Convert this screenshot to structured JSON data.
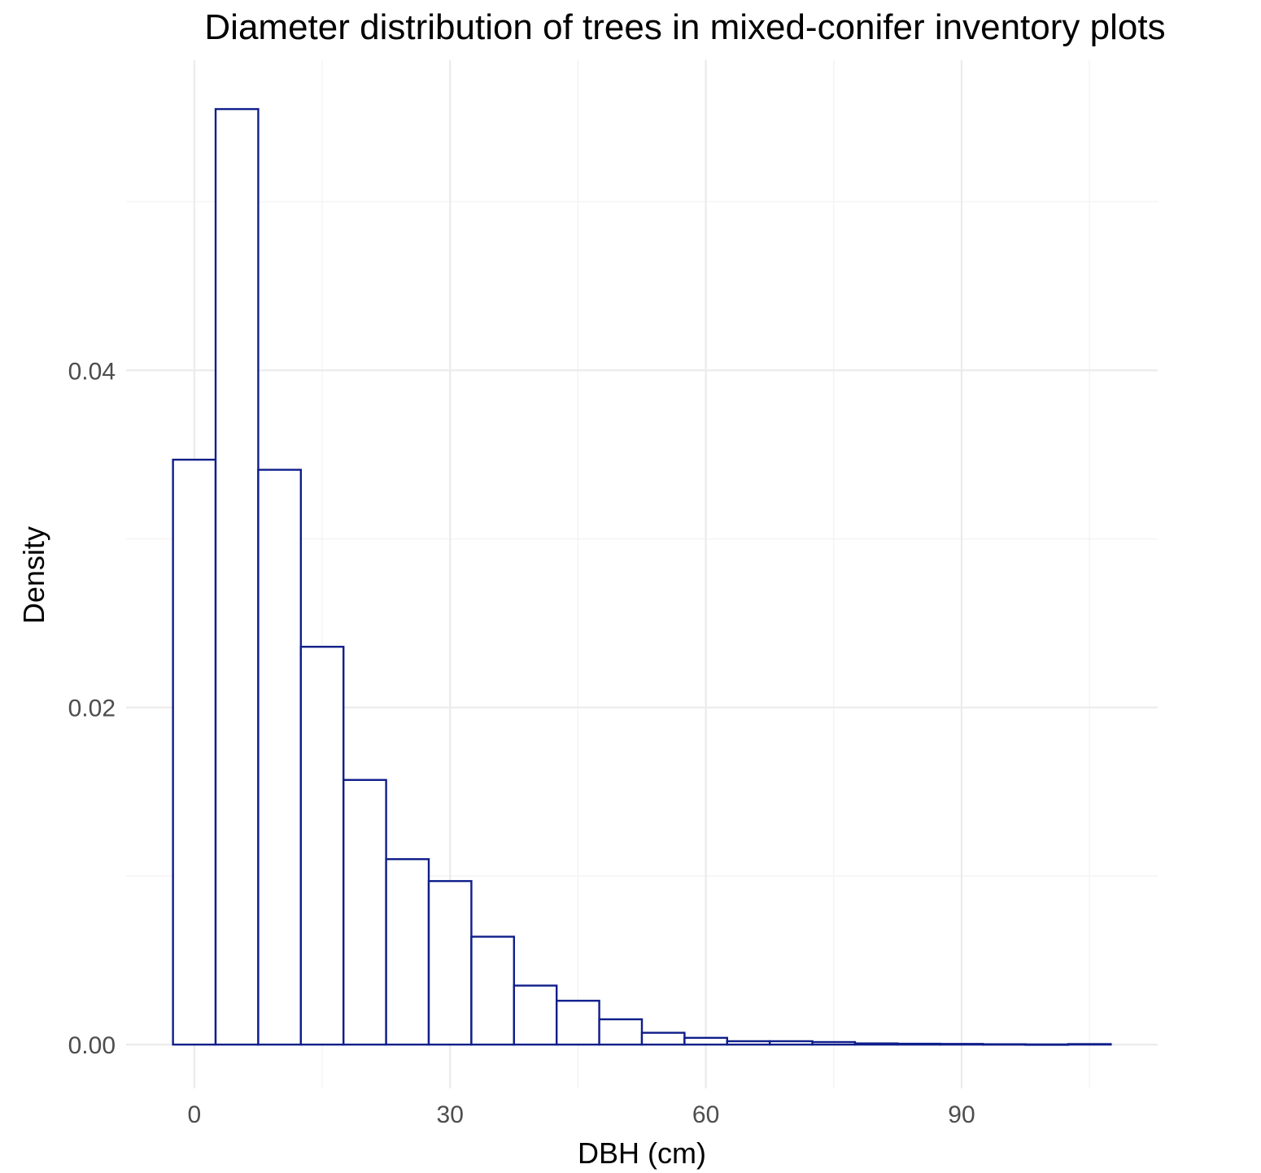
{
  "chart_data": {
    "type": "bar",
    "title": "Diameter distribution of trees in mixed-conifer inventory plots",
    "xlabel": "DBH (cm)",
    "ylabel": "Density",
    "xlim": [
      -8,
      113
    ],
    "ylim": [
      -0.0026,
      0.0584
    ],
    "x_ticks": [
      0,
      30,
      60,
      90
    ],
    "x_tick_labels": [
      "0",
      "30",
      "60",
      "90"
    ],
    "y_ticks": [
      0.0,
      0.02,
      0.04
    ],
    "y_tick_labels": [
      "0.00",
      "0.02",
      "0.04"
    ],
    "bin_width": 5,
    "bins": [
      {
        "x0": -2.5,
        "x1": 2.5,
        "density": 0.0347
      },
      {
        "x0": 2.5,
        "x1": 7.5,
        "density": 0.0555
      },
      {
        "x0": 7.5,
        "x1": 12.5,
        "density": 0.0341
      },
      {
        "x0": 12.5,
        "x1": 17.5,
        "density": 0.0236
      },
      {
        "x0": 17.5,
        "x1": 22.5,
        "density": 0.0157
      },
      {
        "x0": 22.5,
        "x1": 27.5,
        "density": 0.011
      },
      {
        "x0": 27.5,
        "x1": 32.5,
        "density": 0.0097
      },
      {
        "x0": 32.5,
        "x1": 37.5,
        "density": 0.0064
      },
      {
        "x0": 37.5,
        "x1": 42.5,
        "density": 0.0035
      },
      {
        "x0": 42.5,
        "x1": 47.5,
        "density": 0.0026
      },
      {
        "x0": 47.5,
        "x1": 52.5,
        "density": 0.0015
      },
      {
        "x0": 52.5,
        "x1": 57.5,
        "density": 0.0007
      },
      {
        "x0": 57.5,
        "x1": 62.5,
        "density": 0.0004
      },
      {
        "x0": 62.5,
        "x1": 67.5,
        "density": 0.0002
      },
      {
        "x0": 67.5,
        "x1": 72.5,
        "density": 0.0002
      },
      {
        "x0": 72.5,
        "x1": 77.5,
        "density": 0.00015
      },
      {
        "x0": 77.5,
        "x1": 82.5,
        "density": 7e-05
      },
      {
        "x0": 82.5,
        "x1": 87.5,
        "density": 5e-05
      },
      {
        "x0": 87.5,
        "x1": 92.5,
        "density": 4e-05
      },
      {
        "x0": 92.5,
        "x1": 97.5,
        "density": 2e-05
      },
      {
        "x0": 97.5,
        "x1": 102.5,
        "density": 1e-05
      },
      {
        "x0": 102.5,
        "x1": 107.5,
        "density": 3e-05
      }
    ],
    "bar_outline_color": "#0f1e8a",
    "bar_fill_color": "#ffffff",
    "grid": true,
    "legend": "none"
  }
}
